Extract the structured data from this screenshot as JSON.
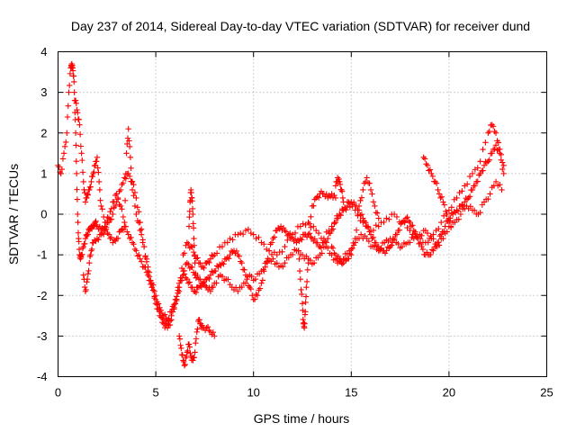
{
  "chart_data": {
    "type": "scatter",
    "title": "Day 237 of 2014, Sidereal Day-to-day VTEC variation (SDTVAR) for receiver dund",
    "xlabel": "GPS time / hours",
    "ylabel": "SDTVAR / TECUs",
    "xlim": [
      0,
      25
    ],
    "ylim": [
      -4,
      4
    ],
    "xticks": [
      0,
      5,
      10,
      15,
      20,
      25
    ],
    "yticks": [
      -4,
      -3,
      -2,
      -1,
      0,
      1,
      2,
      3,
      4
    ],
    "xtick_labels": [
      "0",
      "5",
      "10",
      "15",
      "20",
      "25"
    ],
    "ytick_labels": [
      "-4",
      "-3",
      "-2",
      "-1",
      "0",
      "1",
      "2",
      "3",
      "4"
    ],
    "grid": true,
    "marker": "+",
    "series_color": "#ff0000",
    "series": [
      {
        "name": "SDTVAR",
        "traces": [
          {
            "name": "main-track",
            "x": [
              0.0,
              0.15,
              0.3,
              0.45,
              0.55,
              0.65,
              0.7,
              0.75,
              0.8,
              0.85,
              0.9,
              0.95,
              1.0,
              1.05,
              1.1,
              1.15,
              1.2,
              1.3,
              1.4,
              1.5,
              1.6,
              1.7,
              1.8,
              1.9,
              2.0,
              2.2,
              2.4,
              2.6,
              2.8,
              3.0,
              3.2,
              3.4,
              3.6,
              3.8,
              4.0,
              4.2,
              4.4,
              4.6,
              4.8,
              5.0,
              5.2,
              5.4,
              5.6,
              5.8,
              6.0,
              6.2,
              6.4,
              6.6,
              6.8,
              7.0,
              7.2,
              7.4,
              7.6,
              7.8,
              8.0,
              8.2,
              8.4,
              8.6,
              8.8,
              9.0,
              9.2,
              9.4,
              9.6,
              9.8,
              10.0,
              10.2,
              10.4,
              10.6,
              10.8,
              11.0,
              11.2,
              11.4,
              11.6,
              11.8,
              12.0,
              12.2,
              12.4,
              12.6,
              12.8,
              13.0,
              13.2,
              13.4,
              13.6,
              13.8,
              14.0,
              14.2,
              14.4,
              14.6,
              14.8,
              15.0,
              15.2,
              15.4,
              15.6,
              15.8,
              16.0,
              16.2,
              16.4,
              16.6,
              16.8,
              17.0,
              17.2,
              17.4,
              17.6,
              17.8,
              18.0,
              18.2,
              18.4,
              18.6,
              18.8,
              19.0,
              19.2,
              19.4,
              19.6,
              19.8,
              20.0,
              20.2,
              20.4,
              20.6,
              20.8,
              21.0,
              21.2,
              21.4,
              21.6,
              21.8,
              22.0,
              22.2,
              22.4,
              22.6,
              22.8
            ],
            "y": [
              1.2,
              1.0,
              1.5,
              2.0,
              3.0,
              3.6,
              3.7,
              3.6,
              3.4,
              2.8,
              2.0,
              1.0,
              0.0,
              -0.6,
              -1.0,
              -1.1,
              -1.0,
              -0.8,
              -0.6,
              -0.5,
              -0.4,
              -0.3,
              -0.3,
              -0.2,
              -0.3,
              -0.4,
              -0.3,
              -0.2,
              0.0,
              0.3,
              0.6,
              0.9,
              1.0,
              0.8,
              0.4,
              -0.2,
              -0.8,
              -1.4,
              -1.8,
              -2.2,
              -2.5,
              -2.7,
              -2.8,
              -2.6,
              -2.2,
              -1.8,
              -1.4,
              -1.2,
              -1.3,
              -1.5,
              -1.6,
              -1.7,
              -1.6,
              -1.5,
              -1.4,
              -1.3,
              -1.2,
              -1.1,
              -1.0,
              -0.9,
              -1.0,
              -1.2,
              -1.5,
              -1.8,
              -2.1,
              -2.0,
              -1.7,
              -1.3,
              -0.9,
              -0.6,
              -0.4,
              -0.3,
              -0.4,
              -0.5,
              -0.6,
              -0.7,
              -0.6,
              -0.5,
              -0.5,
              -0.6,
              -0.7,
              -0.8,
              -0.7,
              -0.6,
              -0.4,
              -0.2,
              0.0,
              0.1,
              0.2,
              0.3,
              0.2,
              0.1,
              -0.1,
              -0.3,
              -0.5,
              -0.7,
              -0.8,
              -0.9,
              -0.9,
              -0.8,
              -0.6,
              -0.4,
              -0.2,
              -0.1,
              -0.2,
              -0.4,
              -0.6,
              -0.8,
              -1.0,
              -1.0,
              -0.9,
              -0.7,
              -0.5,
              -0.3,
              -0.1,
              0.0,
              0.1,
              0.2,
              0.3,
              0.4,
              0.6,
              0.8,
              1.0,
              1.2,
              1.3,
              1.5,
              1.7,
              1.5,
              1.0
            ]
          },
          {
            "name": "upper-track",
            "x": [
              0.9,
              1.0,
              1.1,
              1.2,
              1.3,
              1.4,
              1.5,
              1.6,
              1.7,
              1.8,
              1.9,
              2.0,
              2.1,
              2.2,
              2.4,
              2.6,
              2.8,
              3.0,
              3.2,
              3.4,
              3.5,
              3.6,
              3.7,
              3.8,
              4.0,
              4.2,
              4.4,
              4.6,
              4.8,
              5.0,
              5.2,
              5.4,
              5.6,
              5.8,
              6.0,
              6.2,
              6.4,
              6.6,
              6.8,
              7.0,
              7.2,
              7.4,
              7.6,
              7.8,
              8.0,
              8.4,
              8.8,
              9.2,
              9.6,
              10.0,
              10.4,
              10.8,
              11.2,
              11.6,
              12.0,
              12.4,
              12.8,
              13.2,
              13.6,
              14.0,
              14.4,
              14.8,
              15.2,
              15.6,
              16.0,
              16.4,
              16.8,
              17.2,
              17.6,
              18.0,
              18.4,
              18.8,
              19.2,
              19.6,
              20.0,
              20.4,
              20.8,
              21.2,
              21.6,
              22.0,
              22.2,
              22.4,
              22.6,
              22.8
            ],
            "y": [
              2.8,
              2.5,
              2.2,
              1.5,
              0.8,
              0.3,
              0.5,
              0.6,
              0.8,
              1.0,
              1.2,
              1.4,
              0.8,
              0.2,
              -0.2,
              -0.1,
              0.3,
              0.5,
              0.2,
              -0.2,
              1.5,
              2.1,
              1.4,
              0.6,
              0.0,
              -0.4,
              -0.8,
              -1.3,
              -1.7,
              -2.0,
              -2.4,
              -2.6,
              -2.7,
              -2.5,
              -2.2,
              -1.9,
              -1.0,
              -0.7,
              -0.8,
              -1.0,
              -1.2,
              -1.3,
              -1.2,
              -1.1,
              -1.0,
              -0.8,
              -0.6,
              -0.5,
              -0.4,
              -0.5,
              -0.7,
              -0.9,
              -1.0,
              -0.8,
              -0.5,
              -0.3,
              -0.2,
              -0.4,
              -0.6,
              -0.3,
              0.0,
              0.3,
              0.1,
              -0.2,
              -0.4,
              -0.3,
              -0.1,
              0.0,
              -0.2,
              -0.4,
              -0.6,
              -0.7,
              -0.5,
              -0.2,
              0.1,
              0.4,
              0.7,
              1.0,
              1.3,
              2.0,
              2.2,
              2.0,
              1.6,
              1.2
            ]
          },
          {
            "name": "lower-track",
            "x": [
              1.3,
              1.4,
              1.5,
              1.6,
              1.7,
              1.8,
              2.0,
              2.2,
              2.4,
              2.6,
              2.8,
              3.0,
              3.2,
              3.4,
              3.6,
              3.8,
              4.0,
              4.2,
              4.4,
              4.6,
              4.8,
              5.0,
              5.2,
              5.4,
              5.6,
              5.8,
              6.0,
              6.2,
              6.4,
              6.6,
              6.8,
              7.0,
              7.2,
              7.4,
              7.6,
              7.8,
              8.0,
              8.3,
              8.6,
              8.9,
              9.2,
              9.5,
              9.8,
              10.1,
              10.4,
              10.7,
              11.0,
              11.3,
              11.6,
              11.9,
              12.2,
              12.5,
              12.8,
              13.1,
              13.4,
              13.7,
              14.0,
              14.3,
              14.6,
              14.9,
              15.2,
              15.5,
              15.8,
              16.1,
              16.4,
              16.7,
              17.0,
              17.3,
              17.6,
              17.9,
              18.2,
              18.5,
              18.8,
              19.1,
              19.4,
              19.7,
              20.0,
              20.3,
              20.6,
              20.9,
              21.2,
              21.5,
              21.8,
              22.1,
              22.4,
              22.7
            ],
            "y": [
              -1.5,
              -1.9,
              -1.6,
              -1.2,
              -0.9,
              -0.7,
              -0.6,
              -0.5,
              -0.4,
              -0.5,
              -0.7,
              -0.6,
              -0.4,
              -0.3,
              -0.5,
              -0.7,
              -0.9,
              -1.1,
              -1.3,
              -1.5,
              -1.8,
              -2.1,
              -2.3,
              -2.5,
              -2.6,
              -2.4,
              -2.1,
              -1.7,
              -1.5,
              -1.6,
              -1.8,
              -1.9,
              -1.8,
              -1.7,
              -1.8,
              -1.9,
              -1.7,
              -1.5,
              -1.6,
              -1.8,
              -1.9,
              -1.7,
              -1.5,
              -1.6,
              -1.4,
              -1.2,
              -1.1,
              -1.3,
              -1.2,
              -1.0,
              -0.9,
              -1.0,
              -1.1,
              -1.2,
              -1.0,
              -0.8,
              -1.0,
              -1.2,
              -1.1,
              -0.9,
              -0.7,
              -0.5,
              -0.6,
              -0.8,
              -0.9,
              -0.7,
              -0.6,
              -0.7,
              -0.8,
              -0.7,
              -0.6,
              -0.5,
              -0.4,
              -0.6,
              -0.8,
              -0.6,
              -0.3,
              -0.2,
              0.0,
              0.2,
              0.1,
              0.0,
              0.3,
              0.5,
              0.8,
              0.6
            ]
          },
          {
            "name": "dip-near-6h",
            "x": [
              6.2,
              6.3,
              6.4,
              6.5,
              6.6,
              6.7,
              6.8,
              6.9,
              7.0,
              7.1,
              7.2,
              7.3,
              7.4,
              7.6,
              7.8,
              8.0
            ],
            "y": [
              -3.0,
              -3.3,
              -3.6,
              -3.7,
              -3.4,
              -3.2,
              -3.5,
              -3.6,
              -3.4,
              -2.9,
              -2.6,
              -2.7,
              -2.8,
              -2.8,
              -2.9,
              -3.0
            ]
          },
          {
            "name": "spike-near-7h",
            "x": [
              6.7,
              6.75,
              6.8,
              6.85,
              6.9,
              6.95,
              7.0,
              7.1
            ],
            "y": [
              -0.3,
              0.3,
              0.6,
              0.4,
              0.0,
              -0.6,
              -1.2,
              -1.8
            ]
          },
          {
            "name": "dip-near-12-5h",
            "x": [
              12.3,
              12.4,
              12.5,
              12.55,
              12.6,
              12.65,
              12.7,
              12.8
            ],
            "y": [
              -0.9,
              -1.6,
              -2.2,
              -2.7,
              -2.8,
              -2.4,
              -1.8,
              -1.2
            ]
          },
          {
            "name": "plateau-near-13-5h",
            "x": [
              12.8,
              13.0,
              13.2,
              13.4,
              13.6,
              13.8,
              14.0,
              14.2
            ],
            "y": [
              -0.5,
              0.2,
              0.4,
              0.5,
              0.5,
              0.4,
              0.5,
              0.4
            ]
          },
          {
            "name": "branch-near-14-5h",
            "x": [
              14.0,
              14.2,
              14.4,
              14.6,
              14.8,
              15.0,
              15.2,
              15.4,
              15.6,
              15.8,
              16.0,
              16.2,
              16.4
            ],
            "y": [
              -0.8,
              -1.0,
              -1.1,
              -1.2,
              -1.1,
              -1.0,
              -0.6,
              0.2,
              0.6,
              0.9,
              0.6,
              0.2,
              -0.1
            ]
          },
          {
            "name": "spike-near-14-3h",
            "x": [
              14.2,
              14.3,
              14.4,
              14.5,
              14.6
            ],
            "y": [
              0.7,
              0.9,
              0.8,
              0.6,
              0.3
            ]
          },
          {
            "name": "branch-near-18-8h",
            "x": [
              18.7,
              18.9,
              19.1,
              19.3,
              19.5,
              19.7,
              19.9,
              20.1
            ],
            "y": [
              1.4,
              1.2,
              1.0,
              0.8,
              0.5,
              0.3,
              0.0,
              -0.3
            ]
          }
        ]
      }
    ]
  }
}
